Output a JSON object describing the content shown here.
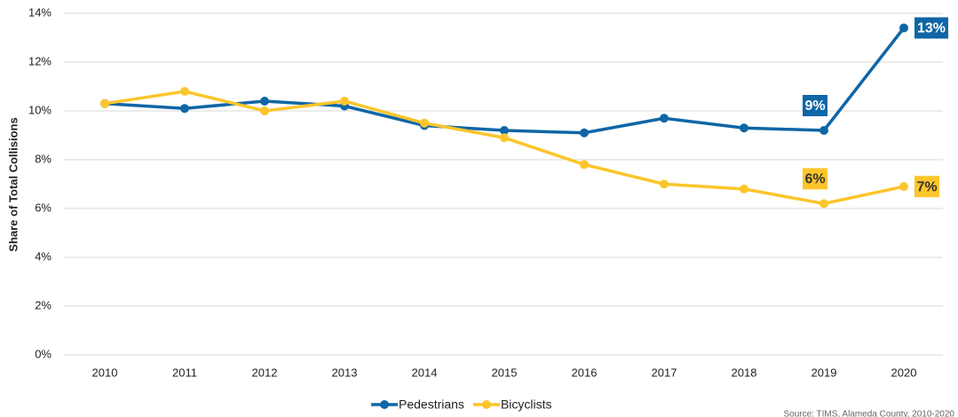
{
  "chart_data": {
    "type": "line",
    "y_label": "Share of Total Collisions",
    "categories": [
      "2010",
      "2011",
      "2012",
      "2013",
      "2014",
      "2015",
      "2016",
      "2017",
      "2018",
      "2019",
      "2020"
    ],
    "series": [
      {
        "name": "Pedestrians",
        "color": "#0f66a6",
        "values": [
          10.3,
          10.1,
          10.4,
          10.2,
          9.4,
          9.2,
          9.1,
          9.7,
          9.3,
          9.2,
          13.4
        ],
        "value_labels": [
          null,
          null,
          null,
          null,
          null,
          null,
          null,
          null,
          null,
          "9%",
          "13%"
        ]
      },
      {
        "name": "Bicyclists",
        "color": "#fcc52b",
        "values": [
          10.3,
          10.8,
          10.0,
          10.4,
          9.5,
          8.9,
          7.8,
          7.0,
          6.8,
          6.2,
          6.9
        ],
        "value_labels": [
          null,
          null,
          null,
          null,
          null,
          null,
          null,
          null,
          null,
          "6%",
          "7%"
        ]
      }
    ],
    "ylim": [
      0,
      14
    ],
    "yticks": [
      {
        "value": 0,
        "label": "0%"
      },
      {
        "value": 2,
        "label": "2%"
      },
      {
        "value": 4,
        "label": "4%"
      },
      {
        "value": 6,
        "label": "6%"
      },
      {
        "value": 8,
        "label": "8%"
      },
      {
        "value": 10,
        "label": "10%"
      },
      {
        "value": 12,
        "label": "12%"
      },
      {
        "value": 14,
        "label": "14%"
      }
    ],
    "grid": true,
    "legend": "bottom",
    "source": "Source: TIMS, Alameda County, 2010-2020"
  }
}
